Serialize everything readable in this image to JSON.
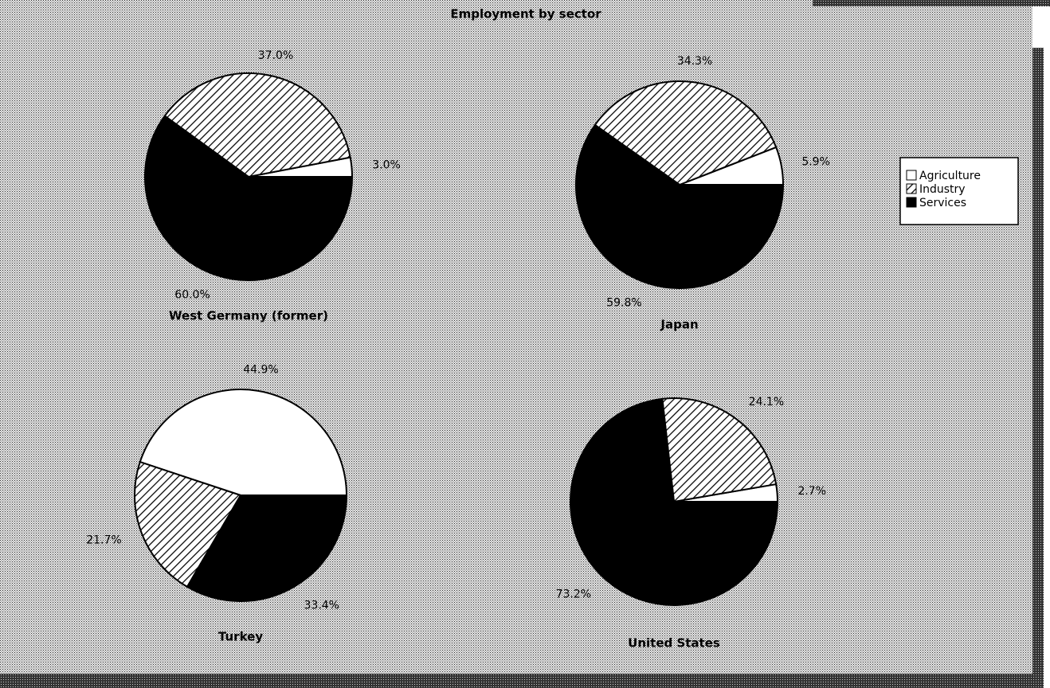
{
  "title": "Employment by sector",
  "legend": {
    "position": "right"
  },
  "chart_data": [
    {
      "type": "pie",
      "title": "West Germany (former)",
      "categories": [
        "Agriculture",
        "Industry",
        "Services"
      ],
      "values": [
        3.0,
        37.0,
        60.0
      ],
      "value_labels": [
        "3.0%",
        "37.0%",
        "60.0%"
      ],
      "fills": [
        "white",
        "hatched",
        "black"
      ]
    },
    {
      "type": "pie",
      "title": "Japan",
      "categories": [
        "Agriculture",
        "Industry",
        "Services"
      ],
      "values": [
        5.9,
        34.3,
        59.8
      ],
      "value_labels": [
        "5.9%",
        "34.3%",
        "59.8%"
      ],
      "fills": [
        "white",
        "hatched",
        "black"
      ]
    },
    {
      "type": "pie",
      "title": "Turkey",
      "categories": [
        "Agriculture",
        "Industry",
        "Services"
      ],
      "values": [
        44.9,
        21.7,
        33.4
      ],
      "value_labels": [
        "44.9%",
        "21.7%",
        "33.4%"
      ],
      "fills": [
        "white",
        "hatched",
        "black"
      ]
    },
    {
      "type": "pie",
      "title": "United States",
      "categories": [
        "Agriculture",
        "Industry",
        "Services"
      ],
      "values": [
        2.7,
        24.1,
        73.2
      ],
      "value_labels": [
        "2.7%",
        "24.1%",
        "73.2%"
      ],
      "fills": [
        "white",
        "hatched",
        "black"
      ]
    }
  ]
}
